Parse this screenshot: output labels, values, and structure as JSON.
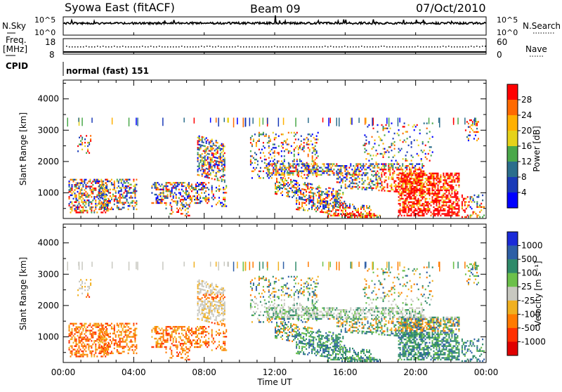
{
  "header": {
    "station": "Syowa East (fitACF)",
    "beam": "Beam 09",
    "date": "07/Oct/2010"
  },
  "top_panels": {
    "nsky_label": "N.Sky",
    "nsearch_label": "N.Search",
    "log_ticks": [
      "10^5",
      "10^0"
    ],
    "freq_label_line1": "Freq.",
    "freq_label_line2": "[MHz]",
    "freq_ticks": [
      "18",
      "8"
    ],
    "nave_label": "Nave",
    "nave_ticks": [
      "60",
      "0"
    ],
    "cpid_label": "CPID",
    "cpid_text": "normal (fast) 151"
  },
  "chart_data": [
    {
      "type": "heatmap",
      "name": "power",
      "ylabel": "Slant Range [km]",
      "yticks": [
        1000,
        2000,
        3000,
        4000
      ],
      "ylim": [
        180,
        4600
      ],
      "colorbar": {
        "label": "Power [dB]",
        "ticks": [
          "28",
          "24",
          "20",
          "16",
          "12",
          "8",
          "4"
        ],
        "colors": [
          "#ff0000",
          "#ff6a00",
          "#ffb000",
          "#e6d21a",
          "#4aa84a",
          "#2b6e8c",
          "#1a3ab8",
          "#0000ff"
        ]
      }
    },
    {
      "type": "heatmap",
      "name": "velocity",
      "ylabel": "Slant Range [km]",
      "yticks": [
        1000,
        2000,
        3000,
        4000
      ],
      "ylim": [
        180,
        4600
      ],
      "colorbar": {
        "label": "Velocity [m s⁻¹]",
        "ticks": [
          "1000",
          "500",
          "100",
          "25",
          "-25",
          "-100",
          "-500",
          "-1000"
        ],
        "colors": [
          "#1a2ad8",
          "#2e5fa6",
          "#2f8a6a",
          "#6cc04a",
          "#c8c8c0",
          "#f0b020",
          "#ff7a00",
          "#ff3000",
          "#e00000"
        ]
      }
    }
  ],
  "xaxis": {
    "label": "Time UT",
    "ticks": [
      "00:00",
      "04:00",
      "08:00",
      "12:00",
      "16:00",
      "20:00",
      "00:00"
    ]
  }
}
